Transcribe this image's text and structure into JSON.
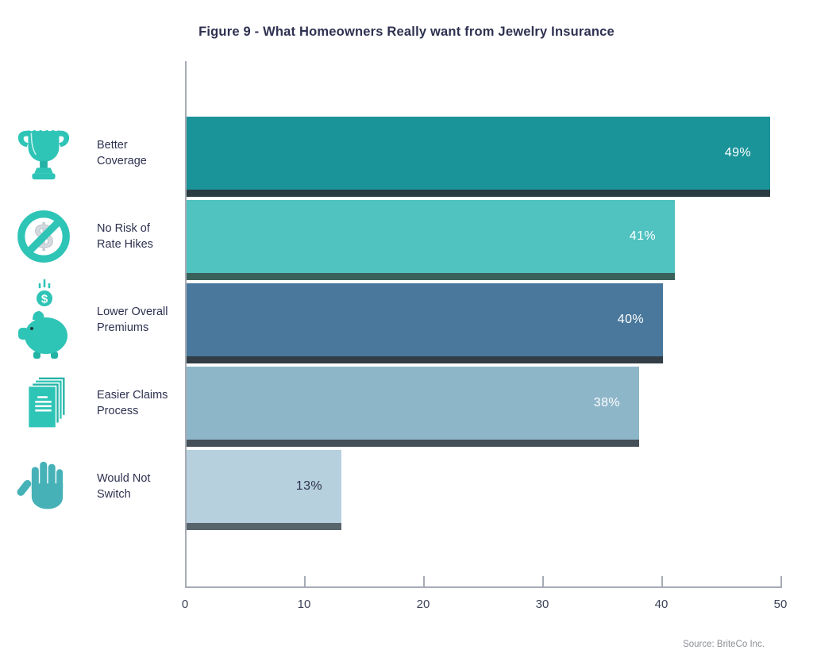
{
  "title": "Figure 9 - What Homeowners Really want from Jewelry Insurance",
  "source": "Source: BriteCo Inc.",
  "chart_data": {
    "type": "bar",
    "orientation": "horizontal",
    "title": "Figure 9 - What Homeowners Really want from Jewelry Insurance",
    "categories": [
      "Better Coverage",
      "No Risk of Rate Hikes",
      "Lower Overall Premiums",
      "Easier Claims Process",
      "Would Not Switch"
    ],
    "category_lines": [
      [
        "Better",
        "Coverage"
      ],
      [
        "No Risk of",
        "Rate Hikes"
      ],
      [
        "Lower Overall",
        "Premiums"
      ],
      [
        "Easier Claims",
        "Process"
      ],
      [
        "Would Not",
        "Switch"
      ]
    ],
    "values": [
      49,
      41,
      40,
      38,
      13
    ],
    "value_labels": [
      "49%",
      "41%",
      "40%",
      "38%",
      "13%"
    ],
    "bar_colors": [
      "#1a9399",
      "#50c2c0",
      "#49789c",
      "#8eb6c9",
      "#b6d0de"
    ],
    "bar_shadow_colors": [
      "#2c3a41",
      "#39615a",
      "#333d45",
      "#454f57",
      "#58646c"
    ],
    "value_label_colors": [
      "#ffffff",
      "#ffffff",
      "#ffffff",
      "#ffffff",
      "#2e3150"
    ],
    "icons": [
      "trophy-icon",
      "no-rate-hike-icon",
      "piggy-bank-icon",
      "documents-icon",
      "stop-hand-icon"
    ],
    "xlabel": "",
    "ylabel": "",
    "xlim": [
      0,
      50
    ],
    "x_ticks": [
      0,
      10,
      20,
      30,
      40,
      50
    ],
    "grid": false,
    "legend": false,
    "source": "Source: BriteCo Inc."
  },
  "colors": {
    "accent_teal": "#2ec4b6",
    "text_dark": "#2e3150",
    "axis_gray": "#a6abb5",
    "source_gray": "#8a8d93"
  }
}
